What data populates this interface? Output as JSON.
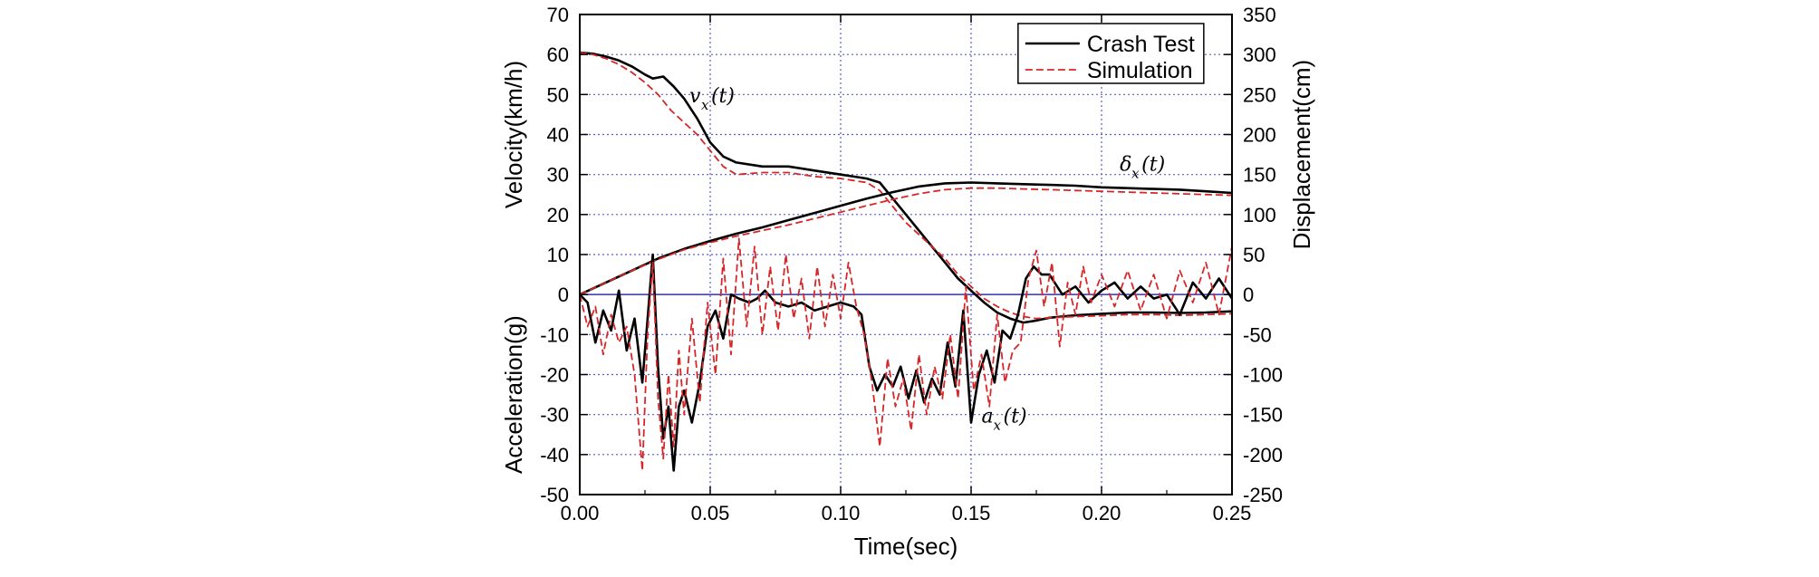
{
  "chart_data": {
    "type": "line",
    "xlabel": "Time(sec)",
    "ylabel_left_top": "Velocity(km/h)",
    "ylabel_left_bottom": "Acceleration(g)",
    "ylabel_right": "Displacement(cm)",
    "xlim": [
      0,
      0.25
    ],
    "ylim_left": [
      -50,
      70
    ],
    "ylim_right": [
      -250,
      350
    ],
    "x_ticks": [
      "0.00",
      "0.05",
      "0.10",
      "0.15",
      "0.20",
      "0.25"
    ],
    "y_left_ticks": [
      "-50",
      "-40",
      "-30",
      "-20",
      "-10",
      "0",
      "10",
      "20",
      "30",
      "40",
      "50",
      "60",
      "70"
    ],
    "y_right_ticks": [
      "-250",
      "-200",
      "-150",
      "-100",
      "-50",
      "0",
      "50",
      "100",
      "150",
      "200",
      "250",
      "300",
      "350"
    ],
    "grid": true,
    "legend_position": "top-right",
    "legend": [
      {
        "label": "Crash Test",
        "color": "#000000",
        "style": "solid"
      },
      {
        "label": "Simulation",
        "color": "#d62728",
        "style": "dashed"
      }
    ],
    "annotations": [
      {
        "main": "v",
        "sub": "x",
        "tail": "(t)",
        "at": [
          0.042,
          48
        ]
      },
      {
        "main": "δ",
        "sub": "x",
        "tail": "(t)",
        "at": [
          0.207,
          31
        ]
      },
      {
        "main": "a",
        "sub": "x",
        "tail": "(t)",
        "at": [
          0.154,
          -32
        ]
      }
    ],
    "zero_line_color": "#3333aa",
    "series": [
      {
        "name": "Crash Test",
        "quantity": "velocity",
        "axis": "left",
        "color": "#000000",
        "dash": "solid",
        "x": [
          0,
          0.005,
          0.01,
          0.015,
          0.02,
          0.025,
          0.028,
          0.032,
          0.036,
          0.04,
          0.045,
          0.05,
          0.055,
          0.06,
          0.07,
          0.08,
          0.09,
          0.1,
          0.105,
          0.11,
          0.115,
          0.12,
          0.125,
          0.13,
          0.135,
          0.14,
          0.145,
          0.15,
          0.155,
          0.16,
          0.165,
          0.17,
          0.175,
          0.18,
          0.19,
          0.2,
          0.21,
          0.22,
          0.23,
          0.24,
          0.25
        ],
        "y": [
          60.5,
          60.2,
          59.5,
          58.5,
          57,
          55,
          54,
          54.5,
          52,
          49,
          44,
          38,
          34.5,
          33,
          32,
          32,
          31,
          30,
          29.5,
          29,
          28,
          24,
          20,
          16,
          12,
          8,
          4,
          1,
          -2,
          -4.5,
          -6,
          -7,
          -6.5,
          -5.8,
          -5.2,
          -4.8,
          -4.5,
          -4.5,
          -4.6,
          -4.5,
          -4.2
        ]
      },
      {
        "name": "Simulation",
        "quantity": "velocity",
        "axis": "left",
        "color": "#d62728",
        "dash": "dashed",
        "x": [
          0,
          0.005,
          0.01,
          0.015,
          0.02,
          0.025,
          0.03,
          0.035,
          0.04,
          0.045,
          0.05,
          0.055,
          0.06,
          0.07,
          0.08,
          0.09,
          0.1,
          0.105,
          0.11,
          0.115,
          0.12,
          0.125,
          0.13,
          0.135,
          0.14,
          0.145,
          0.15,
          0.155,
          0.16,
          0.165,
          0.17,
          0.175,
          0.18,
          0.19,
          0.2,
          0.21,
          0.22,
          0.23,
          0.24,
          0.25
        ],
        "y": [
          60.5,
          60,
          59,
          57.5,
          55.5,
          53,
          50,
          46,
          43,
          40,
          36,
          32,
          30,
          30.5,
          30.5,
          29.5,
          29,
          28.5,
          28,
          26,
          22,
          18,
          15,
          12,
          9,
          5,
          2,
          -1,
          -3,
          -4.5,
          -5.5,
          -6,
          -5.8,
          -5.5,
          -5.3,
          -5,
          -5,
          -5.2,
          -5,
          -4.8
        ]
      },
      {
        "name": "Crash Test",
        "quantity": "displacement",
        "axis": "right",
        "color": "#000000",
        "dash": "solid",
        "x": [
          0,
          0.01,
          0.02,
          0.03,
          0.04,
          0.05,
          0.06,
          0.07,
          0.08,
          0.09,
          0.1,
          0.11,
          0.12,
          0.13,
          0.14,
          0.15,
          0.16,
          0.17,
          0.18,
          0.19,
          0.2,
          0.21,
          0.22,
          0.23,
          0.24,
          0.25
        ],
        "y": [
          0,
          15,
          30,
          45,
          57,
          67,
          76,
          84,
          93,
          102,
          111,
          120,
          128,
          135,
          139,
          140,
          139,
          138,
          137,
          136,
          134,
          133,
          132,
          131,
          129,
          127
        ]
      },
      {
        "name": "Simulation",
        "quantity": "displacement",
        "axis": "right",
        "color": "#d62728",
        "dash": "dashed",
        "x": [
          0,
          0.01,
          0.02,
          0.03,
          0.04,
          0.05,
          0.06,
          0.07,
          0.08,
          0.09,
          0.1,
          0.11,
          0.12,
          0.13,
          0.14,
          0.15,
          0.16,
          0.17,
          0.18,
          0.19,
          0.2,
          0.21,
          0.22,
          0.23,
          0.24,
          0.25
        ],
        "y": [
          0,
          15,
          30,
          44,
          56,
          65,
          73,
          80,
          87,
          95,
          103,
          111,
          119,
          126,
          131,
          133,
          133,
          132,
          131,
          130,
          129,
          128,
          127,
          126,
          125,
          124
        ]
      },
      {
        "name": "Crash Test",
        "quantity": "acceleration",
        "axis": "left",
        "color": "#000000",
        "dash": "solid",
        "x": [
          0,
          0.003,
          0.006,
          0.009,
          0.012,
          0.015,
          0.018,
          0.021,
          0.024,
          0.026,
          0.028,
          0.03,
          0.032,
          0.034,
          0.036,
          0.038,
          0.04,
          0.043,
          0.046,
          0.049,
          0.052,
          0.055,
          0.058,
          0.061,
          0.065,
          0.068,
          0.071,
          0.075,
          0.08,
          0.085,
          0.09,
          0.095,
          0.1,
          0.105,
          0.108,
          0.111,
          0.114,
          0.117,
          0.12,
          0.123,
          0.126,
          0.129,
          0.132,
          0.135,
          0.138,
          0.141,
          0.144,
          0.147,
          0.15,
          0.153,
          0.156,
          0.159,
          0.162,
          0.165,
          0.168,
          0.171,
          0.174,
          0.177,
          0.18,
          0.185,
          0.19,
          0.195,
          0.2,
          0.205,
          0.21,
          0.215,
          0.22,
          0.225,
          0.23,
          0.235,
          0.24,
          0.245,
          0.25
        ],
        "y": [
          0,
          -2,
          -12,
          -4,
          -9,
          1,
          -14,
          -6,
          -22,
          -6,
          10,
          -18,
          -36,
          -28,
          -44,
          -28,
          -24,
          -32,
          -22,
          -8,
          -4,
          -11,
          0,
          -1,
          -2,
          -1,
          1,
          -2,
          -3,
          -2,
          -4,
          -3,
          -2,
          -3,
          -5,
          -18,
          -24,
          -20,
          -23,
          -18,
          -26,
          -19,
          -27,
          -21,
          -25,
          -12,
          -23,
          -4,
          -32,
          -20,
          -14,
          -22,
          -9,
          -11,
          -5,
          4,
          7,
          5,
          5,
          0,
          2,
          -2,
          1,
          3,
          -1,
          2,
          -1,
          0,
          -5,
          3,
          -1,
          4,
          -1
        ]
      },
      {
        "name": "Simulation",
        "quantity": "acceleration",
        "axis": "left",
        "color": "#d62728",
        "dash": "dashed",
        "x": [
          0,
          0.003,
          0.006,
          0.009,
          0.012,
          0.015,
          0.018,
          0.021,
          0.024,
          0.026,
          0.028,
          0.03,
          0.032,
          0.034,
          0.036,
          0.038,
          0.04,
          0.043,
          0.046,
          0.049,
          0.052,
          0.055,
          0.058,
          0.061,
          0.064,
          0.067,
          0.07,
          0.073,
          0.076,
          0.079,
          0.082,
          0.085,
          0.088,
          0.091,
          0.094,
          0.097,
          0.1,
          0.103,
          0.106,
          0.109,
          0.112,
          0.115,
          0.118,
          0.121,
          0.124,
          0.127,
          0.13,
          0.133,
          0.136,
          0.139,
          0.142,
          0.145,
          0.148,
          0.151,
          0.154,
          0.157,
          0.16,
          0.163,
          0.166,
          0.169,
          0.172,
          0.175,
          0.178,
          0.181,
          0.184,
          0.187,
          0.19,
          0.193,
          0.196,
          0.2,
          0.205,
          0.21,
          0.215,
          0.22,
          0.225,
          0.23,
          0.235,
          0.24,
          0.245,
          0.25
        ],
        "y": [
          0,
          -8,
          -3,
          -15,
          -5,
          -12,
          -8,
          -20,
          -44,
          -10,
          8,
          -26,
          -41,
          -20,
          -38,
          -14,
          -30,
          -6,
          -27,
          -2,
          -20,
          9,
          -15,
          14,
          -8,
          12,
          -10,
          7,
          -9,
          10,
          -6,
          4,
          -11,
          7,
          -8,
          5,
          -6,
          8,
          -3,
          -10,
          -22,
          -38,
          -16,
          -28,
          -21,
          -34,
          -15,
          -30,
          -18,
          -26,
          -10,
          -26,
          2,
          -24,
          -15,
          -28,
          -5,
          -22,
          -14,
          -12,
          4,
          11,
          -3,
          8,
          -13,
          3,
          -5,
          7,
          -2,
          5,
          -3,
          6,
          -4,
          5,
          -6,
          6,
          -2,
          8,
          -5,
          12
        ]
      }
    ]
  }
}
